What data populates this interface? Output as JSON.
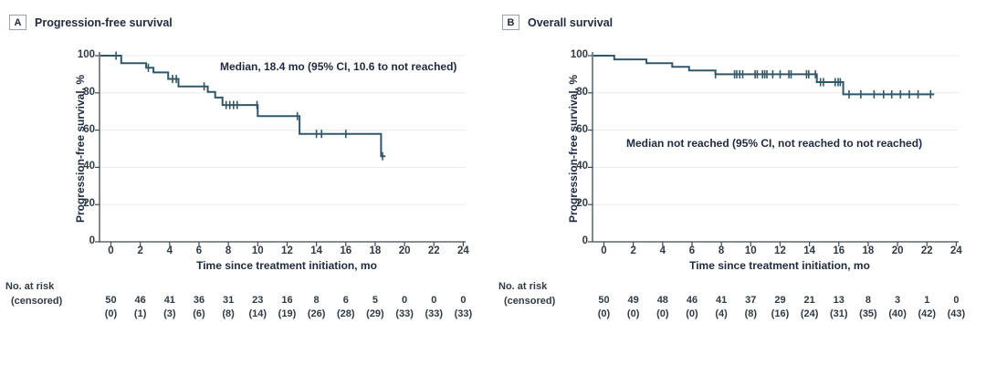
{
  "chart_data": [
    {
      "type": "line",
      "subtype": "kaplan-meier-step",
      "panel_label": "A",
      "title": "Progression-free survival",
      "xlabel": "Time since treatment initiation, mo",
      "ylabel": "Progression-free survival, %",
      "annotation": "Median, 18.4 mo (95% CI, 10.6 to not reached)",
      "xlim": [
        0,
        24
      ],
      "ylim": [
        0,
        100
      ],
      "xticks": [
        0,
        2,
        4,
        6,
        8,
        10,
        12,
        14,
        16,
        18,
        20,
        22,
        24
      ],
      "yticks": [
        0,
        20,
        40,
        60,
        80,
        100
      ],
      "grid": "horizontal",
      "legend": "none",
      "line_color": "#30586a",
      "steps": [
        [
          0,
          100
        ],
        [
          0.7,
          96
        ],
        [
          2.4,
          93.5
        ],
        [
          2.9,
          91
        ],
        [
          3.9,
          87.5
        ],
        [
          4.6,
          83.5
        ],
        [
          6.6,
          80.5
        ],
        [
          7.1,
          77.5
        ],
        [
          7.6,
          73.5
        ],
        [
          10.0,
          67.5
        ],
        [
          12.85,
          58
        ],
        [
          18.4,
          46
        ]
      ],
      "curve_end_t": 18.7,
      "censor_marks": [
        [
          0.35,
          100
        ],
        [
          2.55,
          93.5
        ],
        [
          4.2,
          87.5
        ],
        [
          4.45,
          87.5
        ],
        [
          6.35,
          83.5
        ],
        [
          7.85,
          73.5
        ],
        [
          8.1,
          73.5
        ],
        [
          8.35,
          73.5
        ],
        [
          8.6,
          73.5
        ],
        [
          9.95,
          73.5
        ],
        [
          12.7,
          67.5
        ],
        [
          14.0,
          58
        ],
        [
          14.35,
          58
        ],
        [
          16.0,
          58
        ],
        [
          18.5,
          46
        ]
      ],
      "risk_table": {
        "header": "No. at risk",
        "censored_header": "(censored)",
        "times": [
          0,
          2,
          4,
          6,
          8,
          10,
          12,
          14,
          16,
          18,
          20,
          22,
          24
        ],
        "at_risk": [
          50,
          46,
          41,
          36,
          31,
          23,
          16,
          8,
          6,
          5,
          0,
          0,
          0
        ],
        "censored": [
          0,
          1,
          3,
          6,
          8,
          14,
          19,
          26,
          28,
          29,
          33,
          33,
          33
        ]
      }
    },
    {
      "type": "line",
      "subtype": "kaplan-meier-step",
      "panel_label": "B",
      "title": "Overall survival",
      "xlabel": "Time since treatment initiation, mo",
      "ylabel": "Progression-free survival, %",
      "annotation": "Median not reached (95% CI, not reached to not reached)",
      "xlim": [
        0,
        24
      ],
      "ylim": [
        0,
        100
      ],
      "xticks": [
        0,
        2,
        4,
        6,
        8,
        10,
        12,
        14,
        16,
        18,
        20,
        22,
        24
      ],
      "yticks": [
        0,
        20,
        40,
        60,
        80,
        100
      ],
      "grid": "horizontal",
      "legend": "none",
      "line_color": "#30586a",
      "steps": [
        [
          0,
          100
        ],
        [
          0.7,
          98
        ],
        [
          2.9,
          96
        ],
        [
          4.65,
          94
        ],
        [
          5.8,
          92
        ],
        [
          7.6,
          90
        ],
        [
          14.5,
          85.8
        ],
        [
          16.3,
          79.2
        ]
      ],
      "curve_end_t": 22.5,
      "censor_marks": [
        [
          7.6,
          90
        ],
        [
          8.9,
          90
        ],
        [
          9.05,
          90
        ],
        [
          9.25,
          90
        ],
        [
          9.45,
          90
        ],
        [
          10.3,
          90
        ],
        [
          10.45,
          90
        ],
        [
          10.8,
          90
        ],
        [
          10.95,
          90
        ],
        [
          11.1,
          90
        ],
        [
          11.5,
          90
        ],
        [
          12.0,
          90
        ],
        [
          12.6,
          90
        ],
        [
          12.75,
          90
        ],
        [
          13.8,
          90
        ],
        [
          13.95,
          90
        ],
        [
          14.4,
          90
        ],
        [
          14.75,
          85.8
        ],
        [
          14.95,
          85.8
        ],
        [
          15.75,
          85.8
        ],
        [
          15.95,
          85.8
        ],
        [
          16.1,
          85.8
        ],
        [
          16.7,
          79.2
        ],
        [
          17.5,
          79.2
        ],
        [
          18.4,
          79.2
        ],
        [
          19.05,
          79.2
        ],
        [
          19.6,
          79.2
        ],
        [
          20.2,
          79.2
        ],
        [
          20.8,
          79.2
        ],
        [
          21.4,
          79.2
        ],
        [
          22.25,
          79.2
        ]
      ],
      "risk_table": {
        "header": "No. at risk",
        "censored_header": "(censored)",
        "times": [
          0,
          2,
          4,
          6,
          8,
          10,
          12,
          14,
          16,
          18,
          20,
          22,
          24
        ],
        "at_risk": [
          50,
          49,
          48,
          46,
          41,
          37,
          29,
          21,
          13,
          8,
          3,
          1,
          0
        ],
        "censored": [
          0,
          0,
          0,
          0,
          4,
          8,
          16,
          24,
          31,
          35,
          40,
          42,
          43
        ]
      }
    }
  ]
}
